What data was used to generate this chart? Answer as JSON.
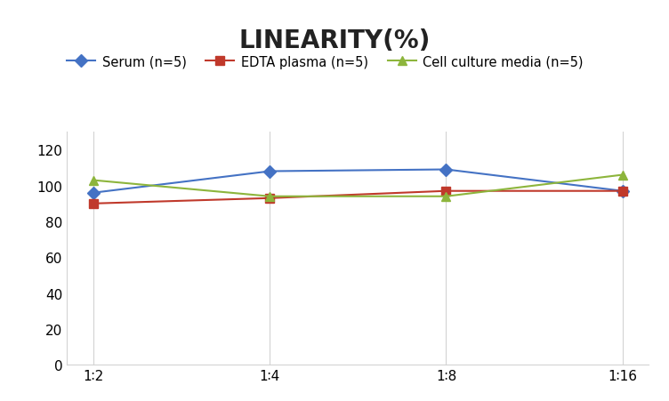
{
  "title": "LINEARITY(%)",
  "x_labels": [
    "1∶2",
    "1∶4",
    "1∶8",
    "1∶16"
  ],
  "x_positions": [
    0,
    1,
    2,
    3
  ],
  "series": [
    {
      "label": "Serum (n=5)",
      "values": [
        96,
        108,
        109,
        97
      ],
      "color": "#4472C4",
      "marker": "D",
      "linewidth": 1.5
    },
    {
      "label": "EDTA plasma (n=5)",
      "values": [
        90,
        93,
        97,
        97
      ],
      "color": "#C0392B",
      "marker": "s",
      "linewidth": 1.5
    },
    {
      "label": "Cell culture media (n=5)",
      "values": [
        103,
        94,
        94,
        106
      ],
      "color": "#8DB53C",
      "marker": "^",
      "linewidth": 1.5
    }
  ],
  "ylim": [
    0,
    130
  ],
  "yticks": [
    0,
    20,
    40,
    60,
    80,
    100,
    120
  ],
  "background_color": "#ffffff",
  "grid_color": "#d3d3d3",
  "title_fontsize": 20,
  "title_fontweight": "bold",
  "legend_fontsize": 10.5,
  "tick_fontsize": 11
}
